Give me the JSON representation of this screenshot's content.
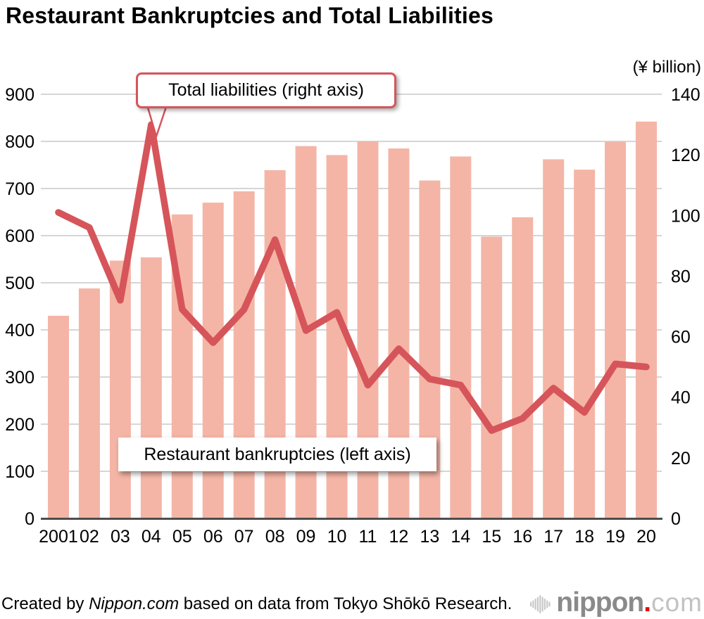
{
  "title": "Restaurant Bankruptcies and Total Liabilities",
  "right_axis_unit": "(¥ billion)",
  "annotations": {
    "liabilities": "Total liabilities (right axis)",
    "bankruptcies": "Restaurant bankruptcies (left axis)"
  },
  "footer": {
    "credit_prefix": "Created by ",
    "credit_source": "Nippon.com",
    "credit_suffix": " based on data from Tokyo Shōkō Research.",
    "logo": {
      "icon": "soundwave-icon",
      "name": "nippon",
      "dot": ".",
      "tld": "com"
    }
  },
  "colors": {
    "bar": "#F4B5A6",
    "line": "#D6555A",
    "grid": "#C9C9C9",
    "axis": "#4D4D4D",
    "callout_border": "#D6555A",
    "logo_gray": "#8A8A8A",
    "logo_light_gray": "#C2C2C2",
    "logo_red": "#E60012",
    "icon_gray": "#C8C8C8"
  },
  "chart_data": {
    "type": "combo",
    "title": "Restaurant Bankruptcies and Total Liabilities",
    "categories": [
      "2001",
      "02",
      "03",
      "04",
      "05",
      "06",
      "07",
      "08",
      "09",
      "10",
      "11",
      "12",
      "13",
      "14",
      "15",
      "16",
      "17",
      "18",
      "19",
      "20"
    ],
    "series": [
      {
        "name": "Restaurant bankruptcies (left axis)",
        "type": "bar",
        "axis": "left",
        "values": [
          430,
          488,
          547,
          554,
          645,
          670,
          694,
          739,
          790,
          771,
          800,
          785,
          717,
          768,
          598,
          639,
          762,
          740,
          799,
          842
        ]
      },
      {
        "name": "Total liabilities (right axis)",
        "type": "line",
        "axis": "right",
        "unit": "¥ billion",
        "values": [
          101,
          96,
          72,
          130,
          69,
          58,
          69,
          92,
          62,
          68,
          44,
          56,
          46,
          44,
          29,
          33,
          43,
          35,
          51,
          50
        ]
      }
    ],
    "left_axis": {
      "min": 0,
      "max": 900,
      "ticks": [
        0,
        100,
        200,
        300,
        400,
        500,
        600,
        700,
        800,
        900
      ]
    },
    "right_axis": {
      "min": 0,
      "max": 140,
      "ticks": [
        0,
        20,
        40,
        60,
        80,
        100,
        120,
        140
      ],
      "label": "(¥ billion)"
    },
    "grid": true,
    "legend_position": "annotation-callouts-on-chart"
  }
}
